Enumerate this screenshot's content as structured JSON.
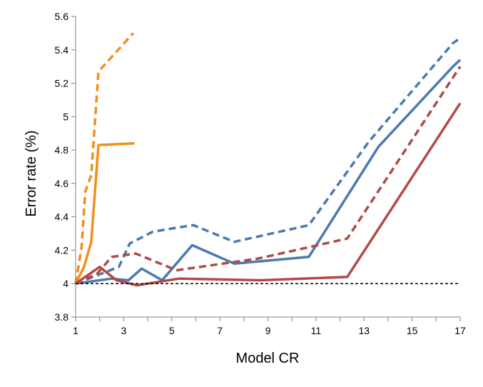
{
  "chart_data": {
    "type": "line",
    "title": "",
    "xlabel": "Model CR",
    "ylabel": "Error rate (%)",
    "xlim": [
      1,
      17
    ],
    "ylim": [
      3.8,
      5.6
    ],
    "grid": false,
    "legend": "none",
    "x_ticks": [
      "1",
      "3",
      "5",
      "7",
      "9",
      "11",
      "13",
      "15",
      "17"
    ],
    "y_ticks": [
      "3.8",
      "4",
      "4.2",
      "4.4",
      "4.6",
      "4.8",
      "5",
      "5.2",
      "5.4",
      "5.6"
    ],
    "series": [
      {
        "color": "#f28e1c",
        "dash": "dashed",
        "points": [
          [
            1,
            4.0
          ],
          [
            1.25,
            4.22
          ],
          [
            1.4,
            4.55
          ],
          [
            1.65,
            4.65
          ],
          [
            1.95,
            5.27
          ],
          [
            3.4,
            5.5
          ]
        ]
      },
      {
        "color": "#f28e1c",
        "dash": "solid",
        "points": [
          [
            1,
            4.0
          ],
          [
            1.35,
            4.1
          ],
          [
            1.65,
            4.25
          ],
          [
            1.95,
            4.83
          ],
          [
            3.45,
            4.84
          ]
        ]
      },
      {
        "color": "#4a7aaf",
        "dash": "dashed",
        "points": [
          [
            1,
            4.0
          ],
          [
            1.9,
            4.05
          ],
          [
            2.8,
            4.1
          ],
          [
            3.25,
            4.24
          ],
          [
            4.2,
            4.31
          ],
          [
            5.0,
            4.33
          ],
          [
            5.9,
            4.35
          ],
          [
            7.6,
            4.25
          ],
          [
            10.7,
            4.35
          ],
          [
            13.2,
            4.85
          ],
          [
            16.7,
            5.44
          ],
          [
            17,
            5.47
          ]
        ]
      },
      {
        "color": "#4a7aaf",
        "dash": "solid",
        "points": [
          [
            1,
            4.0
          ],
          [
            2.5,
            4.03
          ],
          [
            3.2,
            4.02
          ],
          [
            3.75,
            4.09
          ],
          [
            4.6,
            4.02
          ],
          [
            5.85,
            4.23
          ],
          [
            7.6,
            4.12
          ],
          [
            10.7,
            4.16
          ],
          [
            13.6,
            4.82
          ],
          [
            16.7,
            5.3
          ],
          [
            17,
            5.34
          ]
        ]
      },
      {
        "color": "#b04a47",
        "dash": "dashed",
        "points": [
          [
            1,
            4.0
          ],
          [
            1.9,
            4.06
          ],
          [
            2.5,
            4.16
          ],
          [
            3.5,
            4.18
          ],
          [
            5.2,
            4.08
          ],
          [
            8.6,
            4.15
          ],
          [
            12.3,
            4.27
          ],
          [
            17,
            5.3
          ]
        ]
      },
      {
        "color": "#b04a47",
        "dash": "solid",
        "points": [
          [
            1,
            4.0
          ],
          [
            2.0,
            4.1
          ],
          [
            2.7,
            4.02
          ],
          [
            3.55,
            3.99
          ],
          [
            5.3,
            4.03
          ],
          [
            8.7,
            4.02
          ],
          [
            12.3,
            4.04
          ],
          [
            17,
            5.08
          ]
        ]
      },
      {
        "color": "#000000",
        "dash": "baseline",
        "points": [
          [
            1,
            4.0
          ],
          [
            17,
            4.0
          ]
        ]
      }
    ]
  }
}
